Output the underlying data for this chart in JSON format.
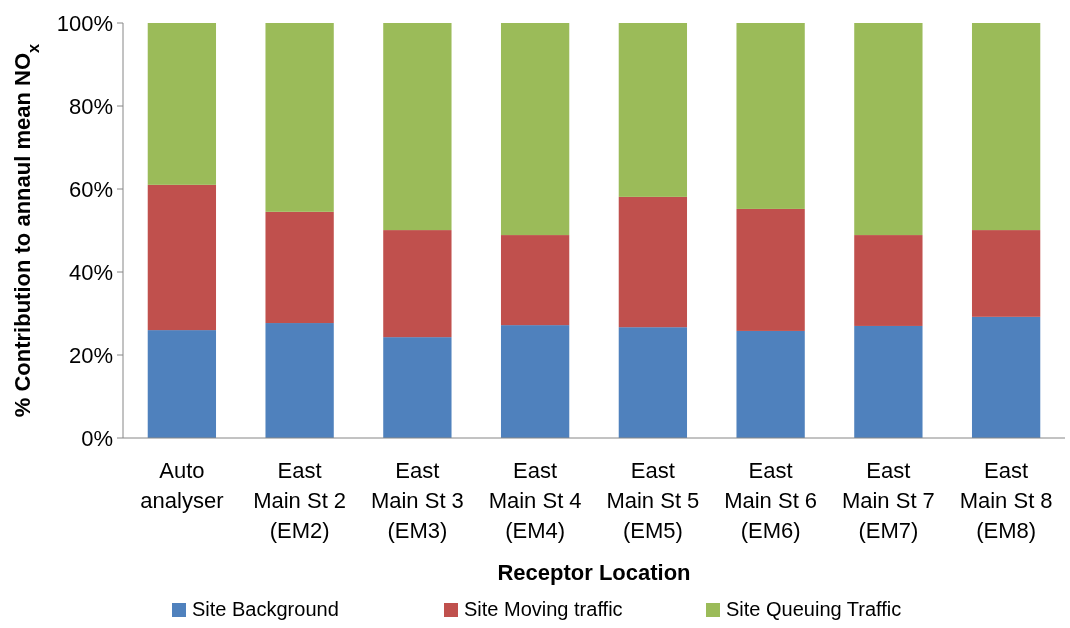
{
  "chart_data": {
    "type": "bar",
    "stacked": true,
    "xlabel": "Receptor Location",
    "ylabel": "% Contribution to annaul mean NO$_{x}$",
    "categories": [
      "Auto analyser",
      "East Main St 2 (EM2)",
      "East Main St 3 (EM3)",
      "East Main St 4 (EM4)",
      "East Main St 5 (EM5)",
      "East Main St 6 (EM6)",
      "East Main St 7 (EM7)",
      "East Main St 8 (EM8)"
    ],
    "series": [
      {
        "name": "Site Background",
        "color": "#4f81bd",
        "values": [
          26,
          27.7,
          24.3,
          27.2,
          26.7,
          25.8,
          27,
          29.2
        ]
      },
      {
        "name": "Site Moving traffic",
        "color": "#c0504d",
        "values": [
          35,
          26.8,
          25.8,
          21.7,
          31.4,
          29.4,
          21.9,
          20.9
        ]
      },
      {
        "name": "Site Queuing Traffic",
        "color": "#9bbb59",
        "values": [
          39,
          45.5,
          49.9,
          51.1,
          41.9,
          44.8,
          51.1,
          49.9
        ]
      }
    ],
    "ylim": [
      0,
      100
    ],
    "yticks": [
      {
        "value": 0,
        "label": "0%"
      },
      {
        "value": 20,
        "label": "20%"
      },
      {
        "value": 40,
        "label": "40%"
      },
      {
        "value": 60,
        "label": "60%"
      },
      {
        "value": 80,
        "label": "80%"
      },
      {
        "value": 100,
        "label": "100%"
      }
    ],
    "grid": false,
    "legend": "bottom"
  }
}
